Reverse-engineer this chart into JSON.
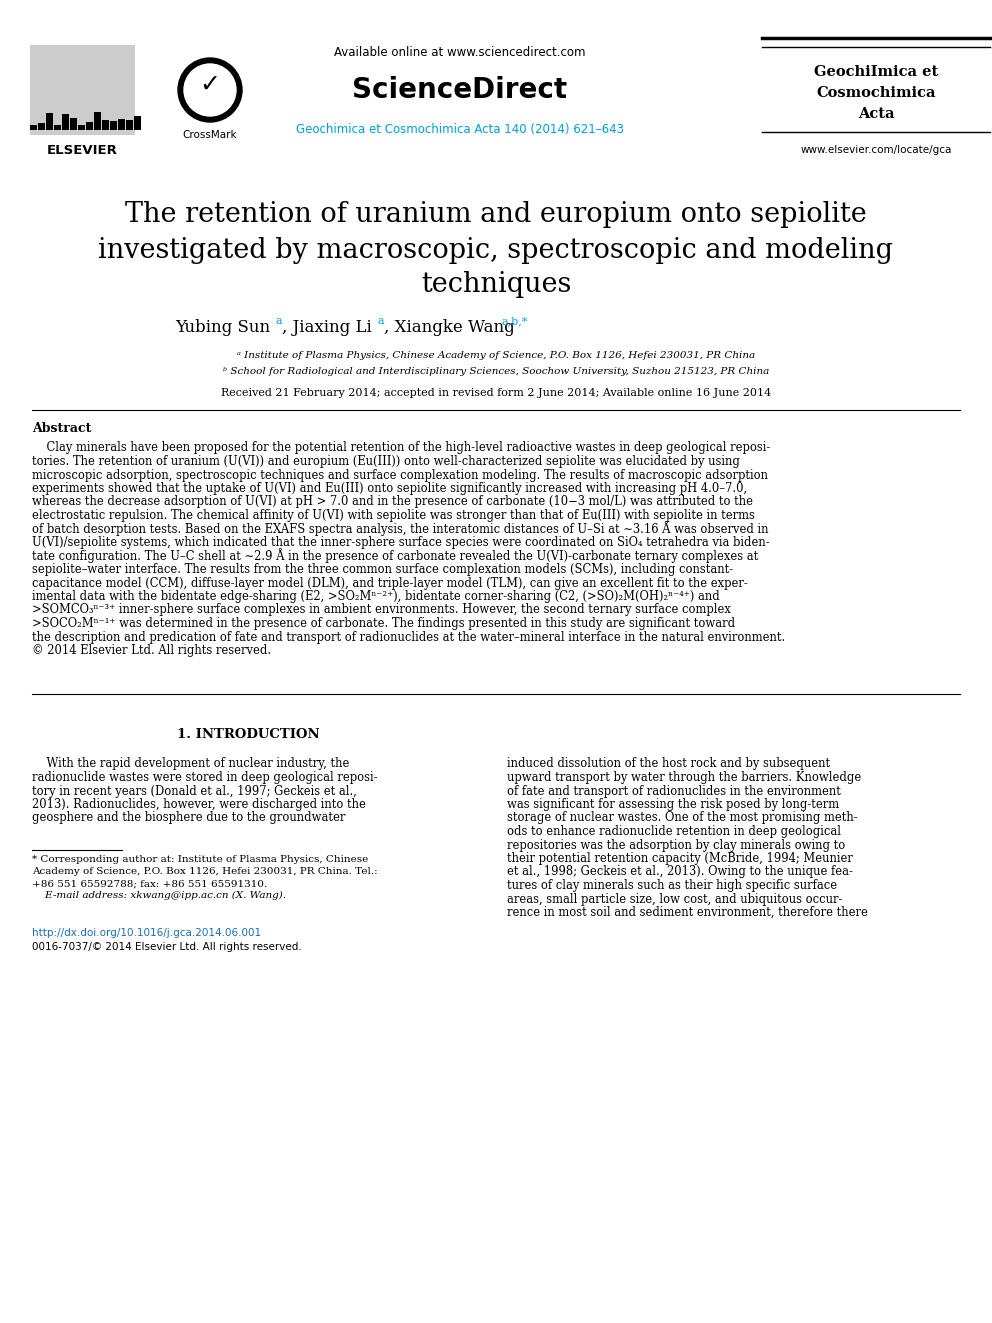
{
  "bg_color": "#ffffff",
  "available_online": "Available online at www.sciencedirect.com",
  "sciencedirect_label": "ScienceDirect",
  "journal_issue": "Geochimica et Cosmochimica Acta 140 (2014) 621–643",
  "journal_name_1": "GeochiImica et",
  "journal_name_2": "Cosmochimica",
  "journal_name_3": "Acta",
  "journal_url": "www.elsevier.com/locate/gca",
  "title_line1": "The retention of uranium and europium onto sepiolite",
  "title_line2": "investigated by macroscopic, spectroscopic and modeling",
  "title_line3": "techniques",
  "author_line": "Yubing Sun ᵃ, Jiaxing Li ᵃ, Xiangke Wang ᵃ,ᵇ,*",
  "affil_a": "ᵃ Institute of Plasma Physics, Chinese Academy of Science, P.O. Box 1126, Hefei 230031, PR China",
  "affil_b": "ᵇ School for Radiological and Interdisciplinary Sciences, Soochow University, Suzhou 215123, PR China",
  "received": "Received 21 February 2014; accepted in revised form 2 June 2014; Available online 16 June 2014",
  "abstract_title": "Abstract",
  "abstract_lines": [
    "    Clay minerals have been proposed for the potential retention of the high-level radioactive wastes in deep geological reposi-",
    "tories. The retention of uranium (U(VI)) and europium (Eu(III)) onto well-characterized sepiolite was elucidated by using",
    "microscopic adsorption, spectroscopic techniques and surface complexation modeling. The results of macroscopic adsorption",
    "experiments showed that the uptake of U(VI) and Eu(III) onto sepiolite significantly increased with increasing pH 4.0–7.0,",
    "whereas the decrease adsorption of U(VI) at pH > 7.0 and in the presence of carbonate (10−3 mol/L) was attributed to the",
    "electrostatic repulsion. The chemical affinity of U(VI) with sepiolite was stronger than that of Eu(III) with sepiolite in terms",
    "of batch desorption tests. Based on the EXAFS spectra analysis, the interatomic distances of U–Si at ∼3.16 Å was observed in",
    "U(VI)/sepiolite systems, which indicated that the inner-sphere surface species were coordinated on SiO₄ tetrahedra via biden-",
    "tate configuration. The U–C shell at ∼2.9 Å in the presence of carbonate revealed the U(VI)-carbonate ternary complexes at",
    "sepiolite–water interface. The results from the three common surface complexation models (SCMs), including constant-",
    "capacitance model (CCM), diffuse-layer model (DLM), and triple-layer model (TLM), can give an excellent fit to the exper-",
    "imental data with the bidentate edge-sharing (E2, >SO₂Mⁿ⁻²⁺), bidentate corner-sharing (C2, (>SO)₂M(OH)₂ⁿ⁻⁴⁺) and",
    ">SOMCO₃ⁿ⁻³⁺ inner-sphere surface complexes in ambient environments. However, the second ternary surface complex",
    ">SOCO₂Mⁿ⁻¹⁺ was determined in the presence of carbonate. The findings presented in this study are significant toward",
    "the description and predication of fate and transport of radionuclides at the water–mineral interface in the natural environment.",
    "© 2014 Elsevier Ltd. All rights reserved."
  ],
  "intro_title": "1. INTRODUCTION",
  "intro_col1_lines": [
    "    With the rapid development of nuclear industry, the",
    "radionuclide wastes were stored in deep geological reposi-",
    "tory in recent years (Donald et al., 1997; Geckeis et al.,",
    "2013). Radionuclides, however, were discharged into the",
    "geosphere and the biosphere due to the groundwater"
  ],
  "intro_col2_lines": [
    "induced dissolution of the host rock and by subsequent",
    "upward transport by water through the barriers. Knowledge",
    "of fate and transport of radionuclides in the environment",
    "was significant for assessing the risk posed by long-term",
    "storage of nuclear wastes. One of the most promising meth-",
    "ods to enhance radionuclide retention in deep geological",
    "repositories was the adsorption by clay minerals owing to",
    "their potential retention capacity (McBride, 1994; Meunier",
    "et al., 1998; Geckeis et al., 2013). Owing to the unique fea-",
    "tures of clay minerals such as their high specific surface",
    "areas, small particle size, low cost, and ubiquitous occur-",
    "rence in most soil and sediment environment, therefore there"
  ],
  "footnote_lines": [
    "* Corresponding author at: Institute of Plasma Physics, Chinese",
    "Academy of Science, P.O. Box 1126, Hefei 230031, PR China. Tel.:",
    "+86 551 65592788; fax: +86 551 65591310.",
    "    E-mail address: xkwang@ipp.ac.cn (X. Wang)."
  ],
  "footer_doi": "http://dx.doi.org/10.1016/j.gca.2014.06.001",
  "footer_copy": "0016-7037/© 2014 Elsevier Ltd. All rights reserved.",
  "journal_issue_color": "#00a0d1",
  "doi_color": "#1a6db5",
  "ref_color": "#1a6db5"
}
